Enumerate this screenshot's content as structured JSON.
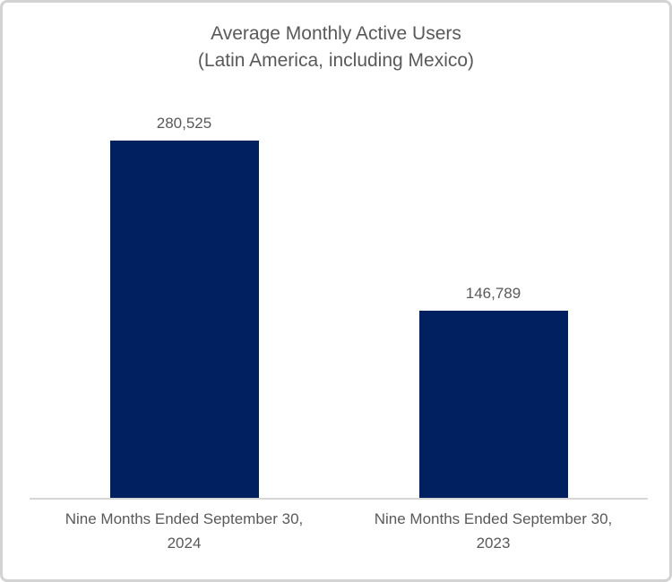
{
  "chart_data": {
    "type": "bar",
    "title": "Average Monthly Active Users",
    "subtitle": "(Latin America, including Mexico)",
    "categories": [
      "Nine Months Ended September 30, 2024",
      "Nine Months Ended September 30, 2023"
    ],
    "values": [
      280525,
      146789
    ],
    "value_labels": [
      "280,525",
      "146,789"
    ],
    "ylim": [
      0,
      300000
    ],
    "grid": false,
    "legend": "none",
    "bar_color": "#002060",
    "text_color": "#595959",
    "axis_line_color": "#d6d6d6"
  }
}
